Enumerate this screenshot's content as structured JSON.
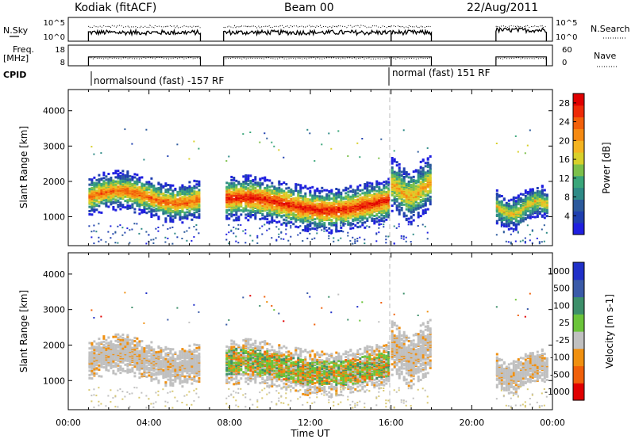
{
  "header": {
    "station": "Kodiak (fitACF)",
    "beam": "Beam 00",
    "date": "22/Aug/2011"
  },
  "left_labels": {
    "nsky": "N.Sky",
    "freq_line1": "Freq.",
    "freq_line2": "[MHz]",
    "cpid": "CPID"
  },
  "right_labels": {
    "nsearch": "N.Search",
    "nave": "Nave"
  },
  "cpid_text": {
    "first": "normalsound (fast) -157 RF",
    "second": "normal (fast) 151 RF"
  },
  "chart_data": [
    {
      "type": "line",
      "panel": "noise",
      "series": [
        {
          "name": "N.Sky",
          "style": "solid"
        },
        {
          "name": "N.Search",
          "style": "dotted"
        }
      ],
      "left_ticks": [
        "10^5",
        "10^0"
      ],
      "right_ticks": [
        "10^5",
        "10^0"
      ],
      "scale": "log",
      "x_range_hours": [
        0,
        24
      ],
      "segments_hours": [
        [
          1.0,
          6.55
        ],
        [
          7.7,
          16.0
        ],
        [
          16.0,
          18.0
        ],
        [
          21.2,
          23.7
        ]
      ]
    },
    {
      "type": "line",
      "panel": "frequency_nave",
      "series": [
        {
          "name": "Freq.",
          "style": "solid"
        },
        {
          "name": "Nave",
          "style": "dotted"
        }
      ],
      "left_ticks": [
        "18",
        "8"
      ],
      "left_range": [
        8,
        18
      ],
      "right_ticks": [
        "60",
        "0"
      ],
      "right_range": [
        0,
        60
      ],
      "segments_hours": [
        [
          1.0,
          6.55
        ],
        [
          7.7,
          16.0
        ],
        [
          16.0,
          18.0
        ],
        [
          21.2,
          23.7
        ]
      ]
    },
    {
      "type": "heatmap",
      "panel": "power",
      "ylabel": "Slant Range [km]",
      "y_ticks": [
        1000,
        2000,
        3000,
        4000
      ],
      "ylim": [
        180,
        4600
      ],
      "x_range_hours": [
        0,
        24
      ],
      "colorbar": {
        "label": "Power [dB]",
        "ticks": [
          4,
          8,
          12,
          16,
          20,
          24,
          28
        ],
        "range": [
          0,
          30
        ],
        "colors": [
          "#1f1fe0",
          "#1f3fb0",
          "#2c5a9c",
          "#2e8a86",
          "#3aa67a",
          "#7cc04a",
          "#d8d02a",
          "#f4b421",
          "#f58a12",
          "#f2600a",
          "#ee2a08",
          "#e00000"
        ]
      },
      "features": [
        {
          "t_start": 1.0,
          "t_end": 6.5,
          "range_center_km": 1600,
          "range_halfwidth_km": 350,
          "peak_db": 24
        },
        {
          "t_start": 7.8,
          "t_end": 15.9,
          "range_center_km": 1400,
          "range_halfwidth_km": 400,
          "peak_db": 28
        },
        {
          "t_start": 16.0,
          "t_end": 18.0,
          "range_center_km": 1800,
          "range_halfwidth_km": 500,
          "peak_db": 20
        },
        {
          "t_start": 21.2,
          "t_end": 23.7,
          "range_center_km": 1300,
          "range_halfwidth_km": 300,
          "peak_db": 18
        }
      ]
    },
    {
      "type": "heatmap",
      "panel": "velocity",
      "ylabel": "Slant Range [km]",
      "xlabel": "Time UT",
      "x_ticks": [
        "00:00",
        "04:00",
        "08:00",
        "12:00",
        "16:00",
        "20:00",
        "00:00"
      ],
      "y_ticks": [
        1000,
        2000,
        3000,
        4000
      ],
      "ylim": [
        180,
        4600
      ],
      "colorbar": {
        "label": "Velocity [m s-1]",
        "ticks": [
          "1000",
          "500",
          "100",
          "25",
          "-25",
          "-100",
          "-500",
          "-1000"
        ],
        "colors": [
          "#2030c8",
          "#3a5aa8",
          "#3d8f6a",
          "#6bc43a",
          "#c0c0c0",
          "#f09010",
          "#f0600a",
          "#e00000"
        ]
      },
      "features": [
        {
          "t_start": 1.0,
          "t_end": 6.5,
          "range_center_km": 1600,
          "velocity": "ground scatter"
        },
        {
          "t_start": 7.8,
          "t_end": 14.5,
          "range_center_km": 1400,
          "velocity": "mixed -500 to 500"
        },
        {
          "t_start": 16.0,
          "t_end": 18.0,
          "range_center_km": 1700,
          "velocity": "ground scatter"
        },
        {
          "t_start": 21.2,
          "t_end": 23.7,
          "range_center_km": 1300,
          "velocity": "ground scatter"
        }
      ]
    }
  ],
  "cpid_change_hours": 16.0
}
